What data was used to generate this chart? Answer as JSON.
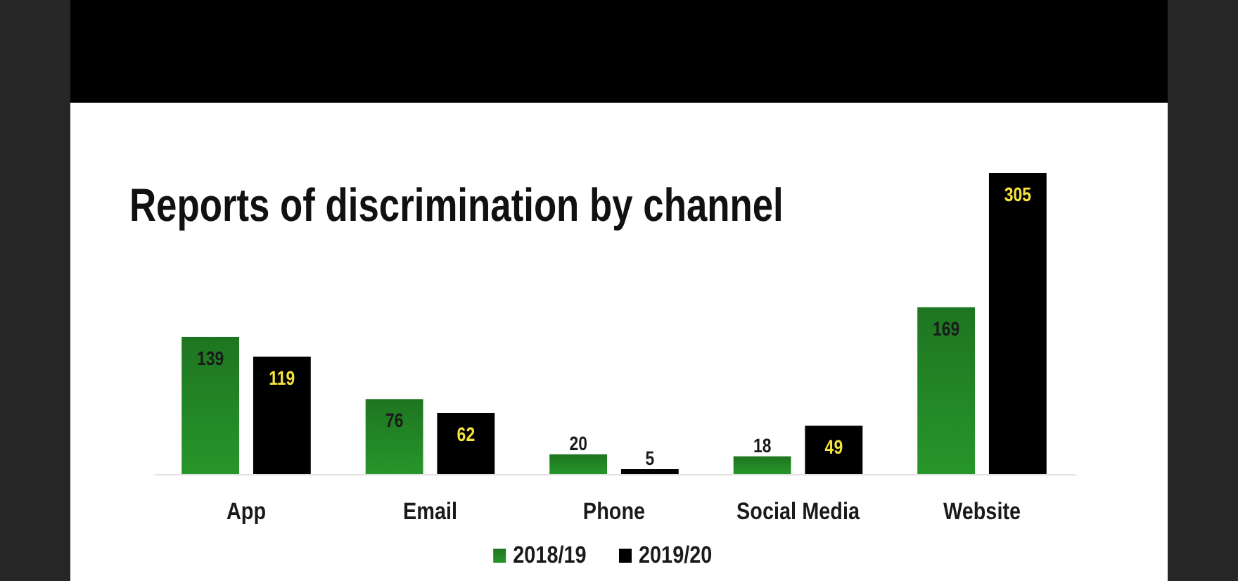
{
  "chart_data": {
    "type": "bar",
    "title": "Reports of discrimination by channel",
    "categories": [
      "App",
      "Email",
      "Phone",
      "Social Media",
      "Website"
    ],
    "series": [
      {
        "name": "2018/19",
        "color": "#27962a",
        "values": [
          139,
          76,
          20,
          18,
          169
        ]
      },
      {
        "name": "2019/20",
        "color": "#000000",
        "values": [
          119,
          62,
          5,
          49,
          305
        ]
      }
    ],
    "data_labels": true,
    "legend": "bottom",
    "grid": false
  }
}
